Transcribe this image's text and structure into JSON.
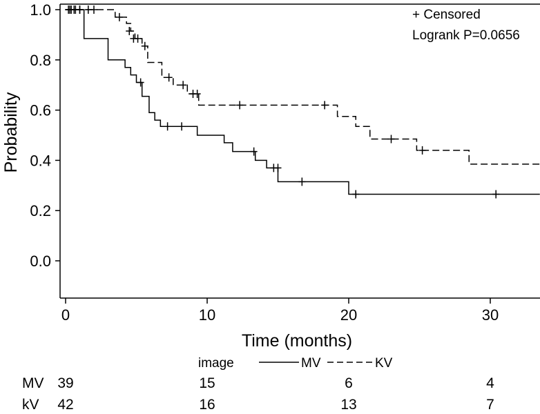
{
  "chart_data": {
    "type": "line",
    "subtype": "kaplan-meier",
    "xlabel": "Time (months)",
    "ylabel": "Probability",
    "xlim": [
      -0.5,
      33.5
    ],
    "ylim": [
      -0.15,
      1.02
    ],
    "xticks": [
      0,
      10,
      20,
      30
    ],
    "yticks": [
      0.0,
      0.2,
      0.4,
      0.6,
      0.8,
      1.0
    ],
    "xtick_labels": [
      "0",
      "10",
      "20",
      "30"
    ],
    "ytick_labels": [
      "0.0",
      "0.2",
      "0.4",
      "0.6",
      "0.8",
      "1.0"
    ],
    "grid": false,
    "annotations": {
      "censored_label": "+ Censored",
      "logrank": "Logrank P=0.0656"
    },
    "legend": {
      "title": "image",
      "placement": "bottom",
      "entries": [
        {
          "label": "MV",
          "style": "solid"
        },
        {
          "label": "KV",
          "style": "dashed"
        }
      ]
    },
    "series": [
      {
        "name": "MV",
        "style": "solid",
        "steps": [
          [
            0,
            1.0
          ],
          [
            1.3,
            0.885
          ],
          [
            3.0,
            0.8
          ],
          [
            4.2,
            0.77
          ],
          [
            4.6,
            0.74
          ],
          [
            5.0,
            0.71
          ],
          [
            5.4,
            0.655
          ],
          [
            5.9,
            0.59
          ],
          [
            6.3,
            0.56
          ],
          [
            6.7,
            0.535
          ],
          [
            9.3,
            0.5
          ],
          [
            11.2,
            0.47
          ],
          [
            11.8,
            0.435
          ],
          [
            13.4,
            0.4
          ],
          [
            14.2,
            0.37
          ],
          [
            15.0,
            0.315
          ],
          [
            20.0,
            0.265
          ],
          [
            33.5,
            0.265
          ]
        ],
        "censored": [
          [
            0.2,
            1.0
          ],
          [
            0.4,
            1.0
          ],
          [
            0.7,
            1.0
          ],
          [
            1.0,
            1.0
          ],
          [
            5.3,
            0.71
          ],
          [
            7.2,
            0.535
          ],
          [
            8.2,
            0.535
          ],
          [
            13.3,
            0.435
          ],
          [
            14.7,
            0.37
          ],
          [
            15.0,
            0.37
          ],
          [
            16.7,
            0.315
          ],
          [
            20.5,
            0.265
          ],
          [
            30.4,
            0.265
          ]
        ]
      },
      {
        "name": "KV",
        "style": "dashed",
        "steps": [
          [
            0,
            1.0
          ],
          [
            3.5,
            0.97
          ],
          [
            4.3,
            0.945
          ],
          [
            4.6,
            0.915
          ],
          [
            4.9,
            0.885
          ],
          [
            5.4,
            0.855
          ],
          [
            5.8,
            0.79
          ],
          [
            6.8,
            0.73
          ],
          [
            7.6,
            0.7
          ],
          [
            8.6,
            0.665
          ],
          [
            9.4,
            0.62
          ],
          [
            19.2,
            0.575
          ],
          [
            20.5,
            0.535
          ],
          [
            21.5,
            0.485
          ],
          [
            24.8,
            0.44
          ],
          [
            28.5,
            0.385
          ],
          [
            33.5,
            0.385
          ]
        ],
        "censored": [
          [
            0.3,
            1.0
          ],
          [
            0.6,
            1.0
          ],
          [
            1.0,
            1.0
          ],
          [
            1.6,
            1.0
          ],
          [
            2.0,
            1.0
          ],
          [
            3.8,
            0.97
          ],
          [
            4.5,
            0.915
          ],
          [
            4.8,
            0.885
          ],
          [
            5.1,
            0.885
          ],
          [
            5.6,
            0.855
          ],
          [
            7.3,
            0.73
          ],
          [
            8.3,
            0.7
          ],
          [
            9.0,
            0.665
          ],
          [
            9.3,
            0.665
          ],
          [
            12.3,
            0.62
          ],
          [
            18.3,
            0.62
          ],
          [
            23.0,
            0.485
          ],
          [
            25.2,
            0.44
          ]
        ]
      }
    ],
    "risk_table": {
      "rows": [
        {
          "label": "MV",
          "values": [
            "39",
            "15",
            "6",
            "4"
          ]
        },
        {
          "label": "kV",
          "values": [
            "42",
            "16",
            "13",
            "7"
          ]
        }
      ]
    }
  }
}
